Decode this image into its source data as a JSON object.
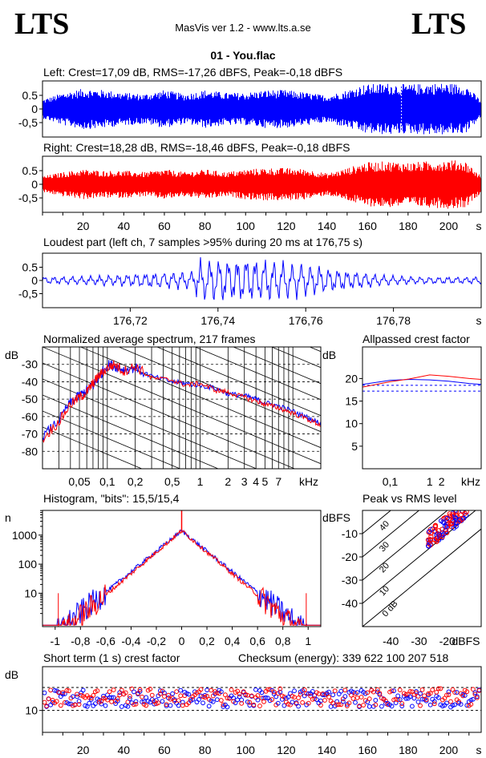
{
  "header": {
    "logo_left": "LTS",
    "logo_right": "LTS",
    "app_title": "MasVis ver 1.2 - www.lts.a.se",
    "file_name": "01 - You.flac"
  },
  "colors": {
    "left": "#0000ff",
    "right": "#ff0000",
    "grid": "#000000"
  },
  "chart_data": [
    {
      "id": "waveform-left",
      "type": "line",
      "title": "Left: Crest=17,09 dB, RMS=-17,26 dBFS, Peak=-0,18 dBFS",
      "yticks": [
        "0.5",
        "0",
        "-0,5"
      ],
      "ylim": [
        -1,
        1
      ],
      "xlim": [
        0,
        216
      ],
      "marker_x": 176.75,
      "envelope": [
        {
          "x": 0,
          "amp": 0.35
        },
        {
          "x": 10,
          "amp": 0.6
        },
        {
          "x": 20,
          "amp": 0.75
        },
        {
          "x": 30,
          "amp": 0.7
        },
        {
          "x": 40,
          "amp": 0.6
        },
        {
          "x": 50,
          "amp": 0.55
        },
        {
          "x": 60,
          "amp": 0.7
        },
        {
          "x": 70,
          "amp": 0.55
        },
        {
          "x": 80,
          "amp": 0.7
        },
        {
          "x": 90,
          "amp": 0.6
        },
        {
          "x": 100,
          "amp": 0.6
        },
        {
          "x": 110,
          "amp": 0.7
        },
        {
          "x": 120,
          "amp": 0.7
        },
        {
          "x": 130,
          "amp": 0.6
        },
        {
          "x": 140,
          "amp": 0.5
        },
        {
          "x": 150,
          "amp": 0.7
        },
        {
          "x": 158,
          "amp": 0.9
        },
        {
          "x": 170,
          "amp": 0.95
        },
        {
          "x": 180,
          "amp": 0.9
        },
        {
          "x": 190,
          "amp": 0.95
        },
        {
          "x": 200,
          "amp": 0.95
        },
        {
          "x": 208,
          "amp": 0.9
        },
        {
          "x": 216,
          "amp": 0.3
        }
      ]
    },
    {
      "id": "waveform-right",
      "type": "line",
      "title": "Right: Crest=18,28 dB, RMS=-18,46 dBFS, Peak=-0,18 dBFS",
      "yticks": [
        "0.5",
        "0",
        "-0,5"
      ],
      "ylim": [
        -1,
        1
      ],
      "xlim": [
        0,
        216
      ],
      "xticks": [
        "20",
        "40",
        "60",
        "80",
        "100",
        "120",
        "140",
        "160",
        "180",
        "200"
      ],
      "xunit": "s",
      "envelope": [
        {
          "x": 0,
          "amp": 0.3
        },
        {
          "x": 10,
          "amp": 0.45
        },
        {
          "x": 20,
          "amp": 0.55
        },
        {
          "x": 30,
          "amp": 0.5
        },
        {
          "x": 40,
          "amp": 0.5
        },
        {
          "x": 50,
          "amp": 0.45
        },
        {
          "x": 60,
          "amp": 0.55
        },
        {
          "x": 70,
          "amp": 0.45
        },
        {
          "x": 80,
          "amp": 0.55
        },
        {
          "x": 90,
          "amp": 0.45
        },
        {
          "x": 100,
          "amp": 0.55
        },
        {
          "x": 110,
          "amp": 0.6
        },
        {
          "x": 120,
          "amp": 0.6
        },
        {
          "x": 130,
          "amp": 0.55
        },
        {
          "x": 140,
          "amp": 0.4
        },
        {
          "x": 150,
          "amp": 0.6
        },
        {
          "x": 158,
          "amp": 0.8
        },
        {
          "x": 170,
          "amp": 0.85
        },
        {
          "x": 180,
          "amp": 0.8
        },
        {
          "x": 190,
          "amp": 0.85
        },
        {
          "x": 200,
          "amp": 0.9
        },
        {
          "x": 208,
          "amp": 0.85
        },
        {
          "x": 216,
          "amp": 0.3
        }
      ]
    },
    {
      "id": "loudest-part",
      "type": "line",
      "title": "Loudest part (left  ch, 7 samples >95% during 20 ms at 176,75 s)",
      "yticks": [
        "0.5",
        "0",
        "-0,5"
      ],
      "ylim": [
        -1,
        1
      ],
      "xlim": [
        176.7,
        176.8
      ],
      "xticks": [
        "176,72",
        "176,74",
        "176,76",
        "176,78"
      ],
      "xunit": "s"
    },
    {
      "id": "spectrum",
      "type": "line",
      "title": "Normalized average spectrum, 217 frames",
      "ylabel": "dB",
      "yticks": [
        "-30",
        "-40",
        "-50",
        "-60",
        "-70",
        "-80"
      ],
      "ylim": [
        -90,
        -20
      ],
      "xlim_khz": [
        0.02,
        20
      ],
      "xticks": [
        "0,05",
        "0,1",
        "0,2",
        "0,5",
        "1",
        "2",
        "3",
        "4",
        "5",
        "7"
      ],
      "xunit": "kHz",
      "series": [
        {
          "points": [
            [
              0.02,
              -72
            ],
            [
              0.03,
              -62
            ],
            [
              0.04,
              -52
            ],
            [
              0.05,
              -48
            ],
            [
              0.06,
              -45
            ],
            [
              0.07,
              -42
            ],
            [
              0.08,
              -38
            ],
            [
              0.1,
              -30
            ],
            [
              0.12,
              -31
            ],
            [
              0.15,
              -33
            ],
            [
              0.2,
              -32
            ],
            [
              0.3,
              -37
            ],
            [
              0.5,
              -40
            ],
            [
              0.7,
              -41
            ],
            [
              1,
              -42
            ],
            [
              1.5,
              -44
            ],
            [
              2,
              -47
            ],
            [
              3,
              -48
            ],
            [
              4,
              -50
            ],
            [
              5,
              -52
            ],
            [
              7,
              -54
            ],
            [
              10,
              -57
            ],
            [
              15,
              -61
            ],
            [
              20,
              -64
            ]
          ]
        },
        {
          "points": [
            [
              0.02,
              -73
            ],
            [
              0.03,
              -63
            ],
            [
              0.04,
              -53
            ],
            [
              0.05,
              -49
            ],
            [
              0.06,
              -46
            ],
            [
              0.07,
              -41
            ],
            [
              0.08,
              -37
            ],
            [
              0.1,
              -32
            ],
            [
              0.12,
              -30
            ],
            [
              0.15,
              -34
            ],
            [
              0.2,
              -31
            ],
            [
              0.3,
              -38
            ],
            [
              0.5,
              -39
            ],
            [
              0.7,
              -42
            ],
            [
              1,
              -41
            ],
            [
              1.5,
              -45
            ],
            [
              2,
              -46
            ],
            [
              3,
              -49
            ],
            [
              4,
              -51
            ],
            [
              5,
              -53
            ],
            [
              7,
              -55
            ],
            [
              10,
              -58
            ],
            [
              15,
              -62
            ],
            [
              20,
              -65
            ]
          ]
        }
      ]
    },
    {
      "id": "allpassed-crest",
      "type": "line",
      "title": "Allpassed crest factor",
      "ylabel": "dB",
      "yticks": [
        "20",
        "15",
        "10",
        "5"
      ],
      "ylim": [
        0,
        27
      ],
      "xlim_khz": [
        0.02,
        20
      ],
      "xticks": [
        "0,1",
        "1",
        "2"
      ],
      "xunit": "kHz",
      "reference_lines": [
        18.5,
        17.2
      ],
      "series": [
        {
          "points": [
            [
              0.02,
              18.7
            ],
            [
              0.1,
              19.6
            ],
            [
              0.3,
              19.8
            ],
            [
              1,
              19.7
            ],
            [
              3,
              19.4
            ],
            [
              10,
              18.9
            ],
            [
              20,
              18.7
            ]
          ]
        },
        {
          "points": [
            [
              0.02,
              18.1
            ],
            [
              0.1,
              19.3
            ],
            [
              0.3,
              19.9
            ],
            [
              1,
              20.8
            ],
            [
              3,
              20.5
            ],
            [
              10,
              20.0
            ],
            [
              20,
              19.8
            ]
          ]
        }
      ]
    },
    {
      "id": "histogram",
      "type": "line",
      "title": "Histogram, \"bits\": 15,5/15,4",
      "ylabel": "n",
      "yscale": "log",
      "yticks": [
        "1000",
        "100",
        "10"
      ],
      "xlim": [
        -1.1,
        1.1
      ],
      "xticks": [
        "-1",
        "-0,8",
        "-0,6",
        "-0,4",
        "-0,2",
        "0",
        "0,2",
        "0,4",
        "0,6",
        "0,8",
        "1"
      ]
    },
    {
      "id": "peak-vs-rms",
      "type": "scatter",
      "title": "Peak vs RMS level",
      "ylabel": "dBFS",
      "xlabel": "dBFS",
      "xlim": [
        -50,
        -8
      ],
      "ylim": [
        -50,
        0
      ],
      "yticks": [
        "-10",
        "-20",
        "-30",
        "-40"
      ],
      "xticks": [
        "-40",
        "-30",
        "-20"
      ],
      "crest_lines": [
        "40",
        "30",
        "20",
        "10",
        "0 dB"
      ]
    },
    {
      "id": "short-term-crest",
      "type": "scatter",
      "title": "Short term (1 s) crest factor",
      "extra_label": "Checksum (energy):  339 622 100 207 518",
      "ylabel": "dB",
      "yticks": [
        "10"
      ],
      "xlim": [
        0,
        216
      ],
      "ylim": [
        0,
        30
      ],
      "reference_lines": [
        20.5,
        10
      ],
      "xticks": [
        "20",
        "40",
        "60",
        "80",
        "100",
        "120",
        "140",
        "160",
        "180",
        "200"
      ],
      "xunit": "s"
    }
  ]
}
